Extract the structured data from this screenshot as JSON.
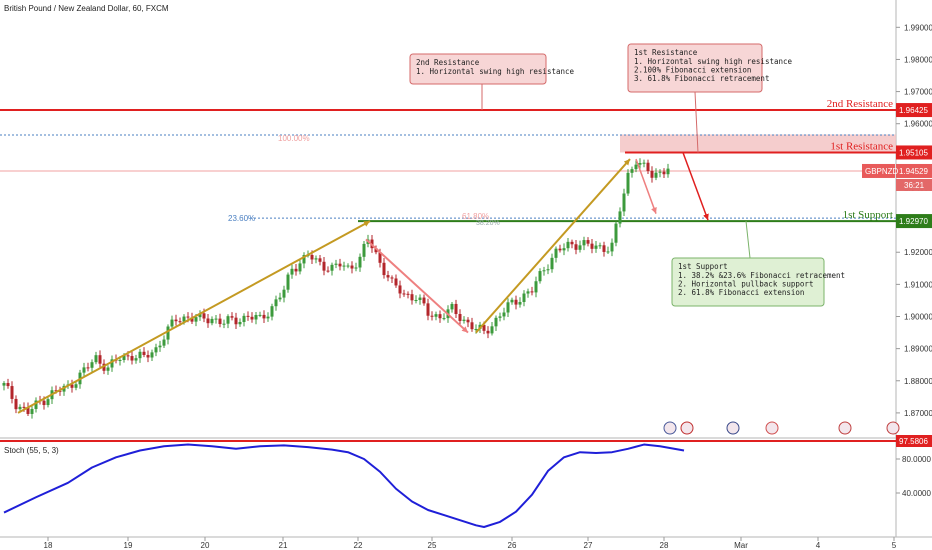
{
  "header": {
    "symbol_title": "British Pound / New Zealand Dollar, 60, FXCM"
  },
  "colors": {
    "up": "#3c9a3c",
    "down": "#b3262b",
    "resistance": "#e02020",
    "support": "#2e7d1a",
    "trend": "#c49a22",
    "pullback": "#ee8080",
    "stoch": "#1f1fd8",
    "price_tag": "#e85a5a",
    "fib": "#4a7fc1"
  },
  "chart_data": {
    "type": "candlestick",
    "title": "British Pound / New Zealand Dollar, 60, FXCM",
    "ylim": [
      1.8625,
      1.9985
    ],
    "y_ticks": [
      "1.99000",
      "1.98000",
      "1.97000",
      "1.96000",
      "1.95000",
      "1.94000",
      "1.93000",
      "1.92000",
      "1.91000",
      "1.90000",
      "1.89000",
      "1.88000",
      "1.87000"
    ],
    "x_ticks": [
      "18",
      "19",
      "20",
      "21",
      "22",
      "25",
      "26",
      "27",
      "28",
      "Mar",
      "4",
      "5"
    ],
    "close_path": [
      [
        0,
        1.8785
      ],
      [
        3,
        1.873
      ],
      [
        6,
        1.87
      ],
      [
        9,
        1.8735
      ],
      [
        12,
        1.876
      ],
      [
        16,
        1.878
      ],
      [
        20,
        1.883
      ],
      [
        23,
        1.887
      ],
      [
        26,
        1.884
      ],
      [
        29,
        1.887
      ],
      [
        32,
        1.888
      ],
      [
        35,
        1.887
      ],
      [
        38,
        1.89
      ],
      [
        40,
        1.894
      ],
      [
        43,
        1.899
      ],
      [
        46,
        1.9
      ],
      [
        49,
        1.899
      ],
      [
        52,
        1.8995
      ],
      [
        55,
        1.898
      ],
      [
        58,
        1.899
      ],
      [
        61,
        1.9
      ],
      [
        64,
        1.899
      ],
      [
        67,
        1.903
      ],
      [
        70,
        1.908
      ],
      [
        72,
        1.915
      ],
      [
        74,
        1.917
      ],
      [
        76,
        1.919
      ],
      [
        78,
        1.917
      ],
      [
        80,
        1.916
      ],
      [
        82,
        1.915
      ],
      [
        84,
        1.916
      ],
      [
        86,
        1.915
      ],
      [
        89,
        1.918
      ],
      [
        91,
        1.924
      ],
      [
        94,
        1.917
      ],
      [
        97,
        1.91
      ],
      [
        100,
        1.907
      ],
      [
        103,
        1.906
      ],
      [
        106,
        1.901
      ],
      [
        109,
        1.9
      ],
      [
        112,
        1.902
      ],
      [
        115,
        1.899
      ],
      [
        118,
        1.896
      ],
      [
        120,
        1.895
      ],
      [
        123,
        1.899
      ],
      [
        126,
        1.903
      ],
      [
        129,
        1.906
      ],
      [
        132,
        1.908
      ],
      [
        135,
        1.915
      ],
      [
        138,
        1.92
      ],
      [
        141,
        1.922
      ],
      [
        144,
        1.923
      ],
      [
        147,
        1.9215
      ],
      [
        150,
        1.9215
      ],
      [
        152,
        1.922
      ],
      [
        154,
        1.933
      ],
      [
        156,
        1.944
      ],
      [
        158,
        1.949
      ],
      [
        160,
        1.946
      ],
      [
        162,
        1.944
      ],
      [
        164,
        1.945
      ],
      [
        166,
        1.9465
      ]
    ],
    "resistance_2": {
      "label": "2nd Resistance",
      "price": "1.96425",
      "value": 1.96425
    },
    "resistance_1": {
      "label": "1st Resistance",
      "price": "1.95105",
      "value": 1.95105
    },
    "support_1": {
      "label": "1st Support",
      "price": "1.92970",
      "value": 1.9297
    },
    "current_price": {
      "symbol": "GBPNZD",
      "price": "1.94529",
      "countdown": "36:21",
      "value": 1.94529
    },
    "fib_labels": {
      "fib_100": "100.00%",
      "fib_236": "23.60%",
      "fib_618": "61.80%",
      "fib_382": "38.20%"
    },
    "stoch_label": "Stoch (55, 5, 3)",
    "stoch_value": "97.5806",
    "stoch_ticks": [
      "80.0000",
      "40.0000"
    ],
    "stoch_ylim": [
      0,
      100
    ],
    "stoch_values": [
      [
        0,
        17
      ],
      [
        8,
        35
      ],
      [
        16,
        52
      ],
      [
        22,
        70
      ],
      [
        28,
        82
      ],
      [
        34,
        90
      ],
      [
        40,
        95
      ],
      [
        46,
        97
      ],
      [
        52,
        95
      ],
      [
        58,
        92
      ],
      [
        64,
        95
      ],
      [
        70,
        96
      ],
      [
        76,
        94
      ],
      [
        82,
        91
      ],
      [
        86,
        88
      ],
      [
        90,
        80
      ],
      [
        94,
        65
      ],
      [
        98,
        45
      ],
      [
        102,
        30
      ],
      [
        106,
        20
      ],
      [
        110,
        14
      ],
      [
        114,
        8
      ],
      [
        118,
        2
      ],
      [
        120,
        0
      ],
      [
        124,
        6
      ],
      [
        128,
        18
      ],
      [
        132,
        38
      ],
      [
        136,
        66
      ],
      [
        140,
        82
      ],
      [
        144,
        88
      ],
      [
        148,
        87
      ],
      [
        152,
        88
      ],
      [
        156,
        92
      ],
      [
        160,
        97
      ],
      [
        164,
        95
      ],
      [
        170,
        90
      ]
    ],
    "annotations": {
      "res2": {
        "title": "2nd Resistance",
        "lines": [
          "1. Horizontal swing high resistance"
        ]
      },
      "res1": {
        "title": "1st Resistance",
        "lines": [
          "1. Horizontal swing high resistance",
          "2.100% Fibonacci extension",
          "3. 61.8% Fibonacci retracement"
        ]
      },
      "sup1": {
        "title": "1st Support",
        "lines": [
          "1. 38.2% &23.6% Fibonacci retracement",
          "2. Horizontal pullback support",
          "2. 61.8% Fibonacci extension"
        ]
      }
    }
  }
}
